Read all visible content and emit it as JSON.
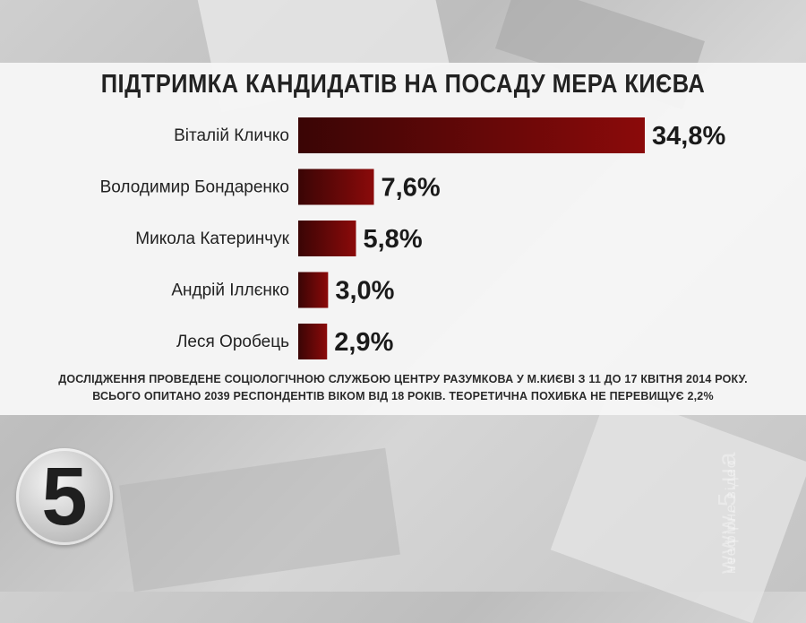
{
  "chart_data": {
    "type": "bar",
    "orientation": "horizontal",
    "title": "ПІДТРИМКА КАНДИДАТІВ НА ПОСАДУ МЕРА КИЄВА",
    "categories": [
      "Віталій Кличко",
      "Володимир Бондаренко",
      "Микола Катеринчук",
      "Андрій Іллєнко",
      "Леся Оробець"
    ],
    "values": [
      34.8,
      7.6,
      5.8,
      3.0,
      2.9
    ],
    "value_labels": [
      "34,8%",
      "7,6%",
      "5,8%",
      "3,0%",
      "2,9%"
    ],
    "unit": "%",
    "xlim": [
      0,
      34.8
    ],
    "grid": false,
    "legend": "none",
    "bar_color": "#8b0a0a",
    "bar_color_dark": "#3a0505"
  },
  "footnote": {
    "line1": "ДОСЛІДЖЕННЯ ПРОВЕДЕНЕ СОЦІОЛОГІЧНОЮ СЛУЖБОЮ ЦЕНТРУ РАЗУМКОВА У М.КИЄВІ З 11 ДО 17 КВІТНЯ 2014 РОКУ.",
    "line2": "ВСЬОГО ОПИТАНО 2039 РЕСПОНДЕНТІВ ВІКОМ ВІД 18 РОКІВ. ТЕОРЕТИЧНА ПОХИБКА НЕ ПЕРЕВИЩУЄ 2,2%"
  },
  "branding": {
    "logo_digit": "5",
    "watermark_url": "www.5.ua",
    "watermark_caption": "неефірне відео"
  }
}
